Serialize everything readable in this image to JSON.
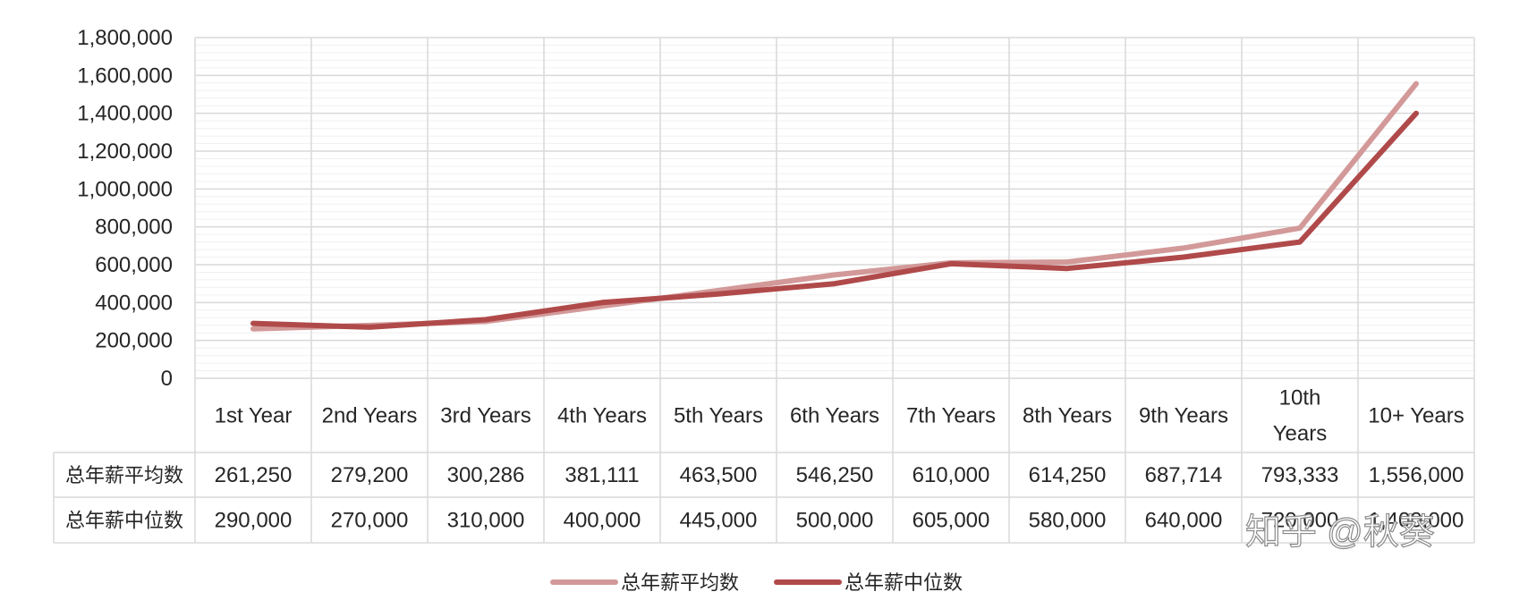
{
  "chart_data": {
    "type": "line",
    "categories": [
      [
        "1st Year"
      ],
      [
        "2nd Years"
      ],
      [
        "3rd Years"
      ],
      [
        "4th Years"
      ],
      [
        "5th Years"
      ],
      [
        "6th Years"
      ],
      [
        "7th Years"
      ],
      [
        "8th Years"
      ],
      [
        "9th Years"
      ],
      [
        "10th",
        "Years"
      ],
      [
        "10+ Years"
      ]
    ],
    "ylim": [
      0,
      1800000
    ],
    "yticks": [
      "0",
      "200,000",
      "400,000",
      "600,000",
      "800,000",
      "1,000,000",
      "1,200,000",
      "1,400,000",
      "1,600,000",
      "1,800,000"
    ],
    "grid": true,
    "legend_position": "bottom",
    "series": [
      {
        "name": "总年薪平均数",
        "color": "#d39999",
        "values": [
          261250,
          279200,
          300286,
          381111,
          463500,
          546250,
          610000,
          614250,
          687714,
          793333,
          1556000
        ],
        "labels": [
          "261,250",
          "279,200",
          "300,286",
          "381,111",
          "463,500",
          "546,250",
          "610,000",
          "614,250",
          "687,714",
          "793,333",
          "1,556,000"
        ]
      },
      {
        "name": "总年薪中位数",
        "color": "#b04a4a",
        "values": [
          290000,
          270000,
          310000,
          400000,
          445000,
          500000,
          605000,
          580000,
          640000,
          720000,
          1400000
        ],
        "labels": [
          "290,000",
          "270,000",
          "310,000",
          "400,000",
          "445,000",
          "500,000",
          "605,000",
          "580,000",
          "640,000",
          "720,000",
          "1,400,000"
        ]
      }
    ]
  },
  "watermark": "知乎 @秋葵"
}
